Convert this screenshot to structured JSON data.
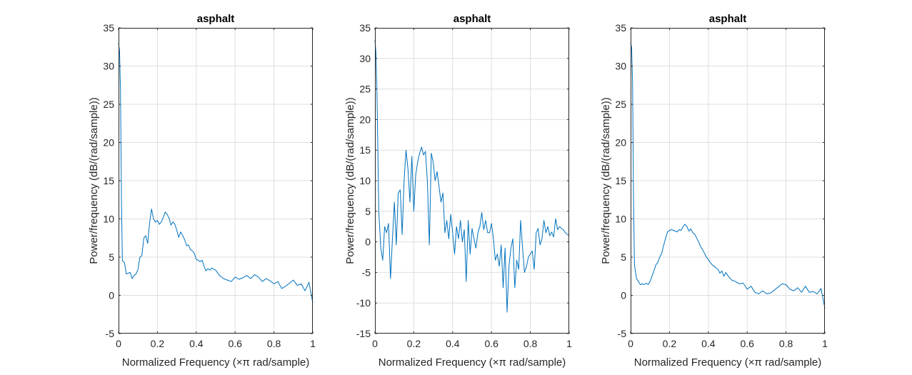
{
  "chart_data": [
    {
      "type": "line",
      "title": "asphalt",
      "xlabel": "Normalized Frequency  (×π rad/sample)",
      "ylabel": "Power/frequency (dB/(rad/sample))",
      "xlim": [
        0,
        1
      ],
      "ylim": [
        -5,
        35
      ],
      "xticks": [
        "0",
        "0.2",
        "0.4",
        "0.6",
        "0.8",
        "1"
      ],
      "yticks": [
        "-5",
        "0",
        "5",
        "10",
        "15",
        "20",
        "25",
        "30",
        "35"
      ],
      "grid": true,
      "color": "#0072bd",
      "series": [
        {
          "x": [
            0,
            0.005,
            0.01,
            0.015,
            0.02,
            0.03,
            0.04,
            0.05,
            0.06,
            0.07,
            0.08,
            0.09,
            0.1,
            0.11,
            0.12,
            0.13,
            0.14,
            0.15,
            0.16,
            0.17,
            0.18,
            0.19,
            0.2,
            0.21,
            0.22,
            0.23,
            0.24,
            0.25,
            0.26,
            0.27,
            0.28,
            0.29,
            0.3,
            0.31,
            0.32,
            0.33,
            0.34,
            0.35,
            0.36,
            0.37,
            0.38,
            0.39,
            0.4,
            0.41,
            0.42,
            0.43,
            0.44,
            0.45,
            0.46,
            0.47,
            0.48,
            0.49,
            0.5,
            0.52,
            0.54,
            0.56,
            0.58,
            0.6,
            0.62,
            0.64,
            0.66,
            0.68,
            0.7,
            0.72,
            0.74,
            0.76,
            0.78,
            0.8,
            0.82,
            0.84,
            0.86,
            0.88,
            0.9,
            0.92,
            0.94,
            0.96,
            0.98,
            1.0
          ],
          "y": [
            33,
            32,
            27,
            12,
            4.5,
            4.3,
            2.8,
            2.9,
            3.0,
            2.2,
            2.6,
            2.8,
            3.4,
            5.0,
            5.2,
            7.5,
            7.8,
            6.8,
            9.5,
            11.3,
            10.0,
            9.6,
            9.8,
            9.3,
            9.6,
            10.2,
            10.9,
            10.6,
            10.1,
            9.2,
            9.6,
            9.3,
            8.5,
            7.6,
            8.3,
            7.8,
            7.3,
            6.5,
            6.6,
            6.0,
            5.8,
            5.5,
            4.7,
            4.6,
            4.4,
            4.6,
            3.8,
            3.2,
            3.5,
            3.3,
            3.6,
            3.4,
            3.3,
            2.6,
            2.2,
            2.0,
            1.8,
            2.4,
            2.1,
            2.3,
            2.6,
            2.2,
            2.7,
            2.4,
            1.8,
            2.2,
            1.9,
            1.5,
            1.8,
            0.9,
            1.2,
            1.6,
            2.0,
            1.3,
            1.5,
            0.6,
            1.7,
            -1.0
          ]
        }
      ]
    },
    {
      "type": "line",
      "title": "asphalt",
      "xlabel": "Normalized Frequency  (×π rad/sample)",
      "ylabel": "Power/frequency (dB/(rad/sample))",
      "xlim": [
        0,
        1
      ],
      "ylim": [
        -15,
        35
      ],
      "xticks": [
        "0",
        "0.2",
        "0.4",
        "0.6",
        "0.8",
        "1"
      ],
      "yticks": [
        "-15",
        "-10",
        "-5",
        "0",
        "5",
        "10",
        "15",
        "20",
        "25",
        "30",
        "35"
      ],
      "grid": true,
      "color": "#0072bd",
      "series": [
        {
          "x": [
            0,
            0.005,
            0.01,
            0.015,
            0.02,
            0.03,
            0.04,
            0.05,
            0.06,
            0.07,
            0.08,
            0.09,
            0.1,
            0.11,
            0.12,
            0.13,
            0.14,
            0.15,
            0.16,
            0.17,
            0.18,
            0.19,
            0.2,
            0.21,
            0.22,
            0.23,
            0.24,
            0.25,
            0.26,
            0.27,
            0.28,
            0.29,
            0.3,
            0.31,
            0.32,
            0.33,
            0.34,
            0.35,
            0.36,
            0.37,
            0.38,
            0.39,
            0.4,
            0.41,
            0.42,
            0.43,
            0.44,
            0.45,
            0.46,
            0.47,
            0.48,
            0.49,
            0.5,
            0.51,
            0.52,
            0.53,
            0.54,
            0.55,
            0.56,
            0.57,
            0.58,
            0.59,
            0.6,
            0.61,
            0.62,
            0.63,
            0.64,
            0.65,
            0.66,
            0.67,
            0.68,
            0.69,
            0.7,
            0.71,
            0.72,
            0.73,
            0.74,
            0.75,
            0.76,
            0.77,
            0.78,
            0.79,
            0.8,
            0.81,
            0.82,
            0.83,
            0.84,
            0.85,
            0.86,
            0.87,
            0.88,
            0.89,
            0.9,
            0.91,
            0.92,
            0.93,
            0.94,
            0.95,
            0.96,
            0.97,
            0.98,
            0.99,
            1.0
          ],
          "y": [
            33,
            31,
            25,
            15,
            5,
            -1,
            -3,
            2.5,
            1.5,
            3,
            -6,
            0.5,
            6.5,
            -0.5,
            8,
            8.5,
            1.2,
            10,
            15,
            12,
            6.5,
            14,
            5,
            11,
            13,
            14.5,
            15.5,
            14.2,
            14.8,
            10,
            -0.5,
            14.5,
            13,
            10,
            11.5,
            9,
            6.5,
            8,
            1.5,
            3.5,
            0.5,
            4.5,
            1.5,
            -2,
            2.5,
            0.5,
            3.5,
            0,
            2.0,
            -6.5,
            3.5,
            -2,
            2.2,
            0.5,
            -1,
            1.5,
            2.5,
            4.8,
            2,
            3.5,
            1.5,
            1.5,
            3,
            0.5,
            -3,
            -2,
            -4,
            -0.5,
            -7.5,
            -1,
            -11.5,
            -4,
            -1,
            0.5,
            -7.5,
            -3,
            -4.5,
            3.5,
            -1,
            -5,
            -4,
            -2.5,
            -2,
            -1.5,
            -4.5,
            1.5,
            2.2,
            -0.5,
            0.5,
            3.5,
            1.5,
            2.5,
            1.0,
            1.6,
            0.8,
            3.8,
            2.0,
            2.5,
            2.2,
            2.0,
            1.5,
            1.2,
            1.0
          ]
        }
      ]
    },
    {
      "type": "line",
      "title": "asphalt",
      "xlabel": "Normalized Frequency  (×π rad/sample)",
      "ylabel": "Power/frequency (dB/(rad/sample))",
      "xlim": [
        0,
        1
      ],
      "ylim": [
        -5,
        35
      ],
      "xticks": [
        "0",
        "0.2",
        "0.4",
        "0.6",
        "0.8",
        "1"
      ],
      "yticks": [
        "-5",
        "0",
        "5",
        "10",
        "15",
        "20",
        "25",
        "30",
        "35"
      ],
      "grid": true,
      "color": "#0072bd",
      "series": [
        {
          "x": [
            0,
            0.005,
            0.01,
            0.015,
            0.02,
            0.03,
            0.04,
            0.05,
            0.06,
            0.07,
            0.08,
            0.09,
            0.1,
            0.11,
            0.12,
            0.13,
            0.14,
            0.15,
            0.16,
            0.17,
            0.18,
            0.19,
            0.2,
            0.21,
            0.22,
            0.23,
            0.24,
            0.25,
            0.26,
            0.27,
            0.28,
            0.29,
            0.3,
            0.31,
            0.32,
            0.33,
            0.34,
            0.35,
            0.36,
            0.37,
            0.38,
            0.39,
            0.4,
            0.41,
            0.42,
            0.43,
            0.44,
            0.45,
            0.46,
            0.47,
            0.48,
            0.49,
            0.5,
            0.52,
            0.54,
            0.56,
            0.58,
            0.6,
            0.62,
            0.64,
            0.66,
            0.68,
            0.7,
            0.72,
            0.74,
            0.76,
            0.78,
            0.8,
            0.82,
            0.84,
            0.86,
            0.88,
            0.9,
            0.92,
            0.94,
            0.96,
            0.98,
            1.0
          ],
          "y": [
            33,
            32.5,
            28,
            12,
            4,
            2.2,
            1.8,
            1.4,
            1.5,
            1.4,
            1.6,
            1.4,
            1.8,
            2.5,
            3.2,
            4.0,
            4.3,
            5.0,
            5.5,
            6.5,
            7.5,
            8.3,
            8.5,
            8.6,
            8.5,
            8.4,
            8.3,
            8.6,
            8.5,
            9.0,
            9.3,
            9.0,
            8.4,
            8.7,
            8.2,
            8.0,
            7.5,
            7.0,
            6.4,
            6.0,
            5.5,
            5.0,
            4.7,
            4.3,
            4.0,
            3.8,
            3.6,
            3.4,
            2.9,
            3.2,
            2.5,
            3.0,
            2.6,
            2.0,
            1.8,
            1.5,
            1.6,
            0.8,
            1.2,
            0.4,
            0.2,
            0.6,
            0.2,
            0.3,
            0.7,
            1.1,
            1.5,
            1.4,
            0.8,
            0.6,
            1.0,
            0.4,
            1.2,
            0.4,
            0.5,
            0.2,
            0.9,
            -1.7
          ]
        }
      ]
    }
  ]
}
